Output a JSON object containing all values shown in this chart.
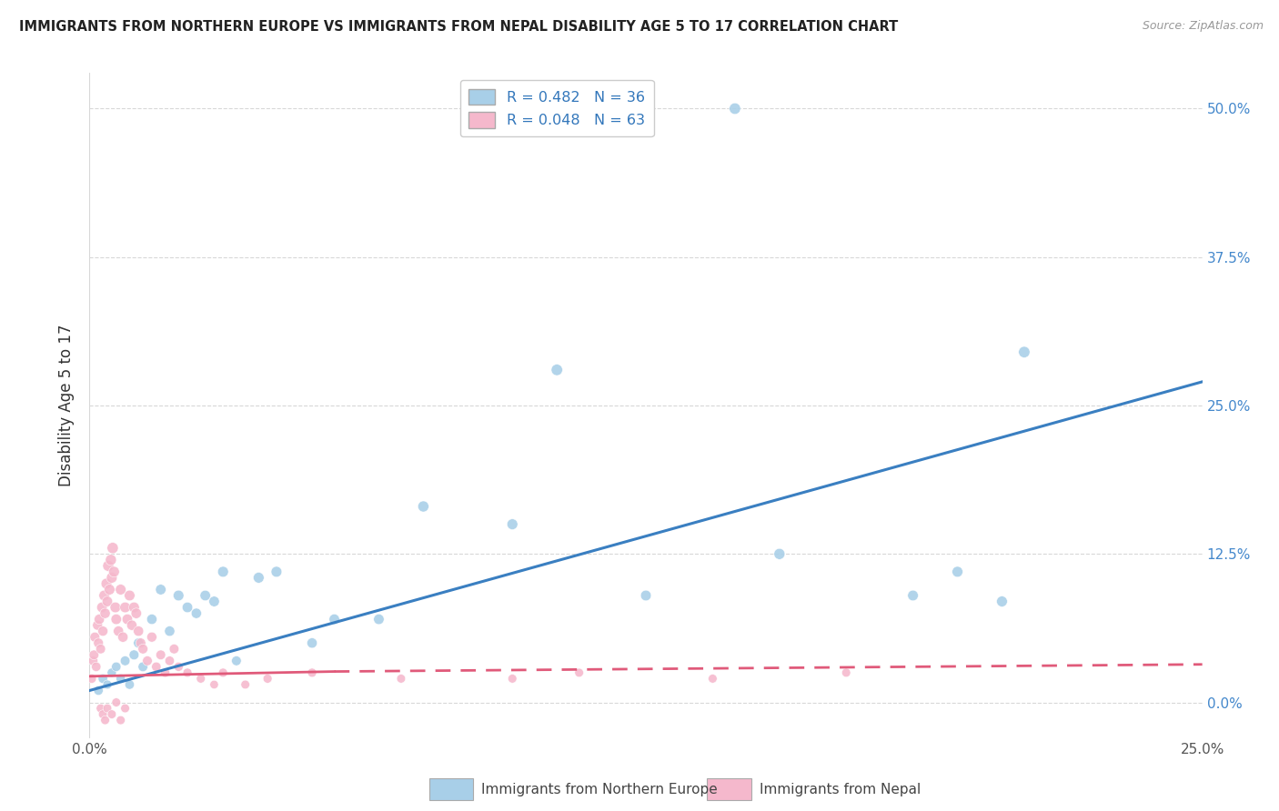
{
  "title": "IMMIGRANTS FROM NORTHERN EUROPE VS IMMIGRANTS FROM NEPAL DISABILITY AGE 5 TO 17 CORRELATION CHART",
  "source": "Source: ZipAtlas.com",
  "ylabel": "Disability Age 5 to 17",
  "legend_label_blue": "Immigrants from Northern Europe",
  "legend_label_pink": "Immigrants from Nepal",
  "legend_R_blue": "R = 0.482",
  "legend_N_blue": "N = 36",
  "legend_R_pink": "R = 0.048",
  "legend_N_pink": "N = 63",
  "ytick_values": [
    0.0,
    12.5,
    25.0,
    37.5,
    50.0
  ],
  "xlim": [
    0.0,
    25.0
  ],
  "ylim": [
    -3.0,
    53.0
  ],
  "blue_color": "#a8cfe8",
  "pink_color": "#f5b8cc",
  "blue_line_color": "#3a7fc1",
  "pink_line_color": "#e05a7a",
  "background_color": "#ffffff",
  "grid_color": "#d8d8d8",
  "blue_x": [
    0.2,
    0.3,
    0.4,
    0.5,
    0.6,
    0.7,
    0.8,
    0.9,
    1.0,
    1.1,
    1.2,
    1.4,
    1.6,
    1.8,
    2.0,
    2.2,
    2.4,
    2.6,
    2.8,
    3.0,
    3.3,
    3.8,
    4.2,
    5.0,
    5.5,
    6.5,
    7.5,
    14.5,
    19.5,
    21.0,
    10.5,
    12.5,
    20.5,
    15.5,
    18.5,
    9.5
  ],
  "blue_y": [
    1.0,
    2.0,
    1.5,
    2.5,
    3.0,
    2.0,
    3.5,
    1.5,
    4.0,
    5.0,
    3.0,
    7.0,
    9.5,
    6.0,
    9.0,
    8.0,
    7.5,
    9.0,
    8.5,
    11.0,
    3.5,
    10.5,
    11.0,
    5.0,
    7.0,
    7.0,
    16.5,
    50.0,
    11.0,
    29.5,
    28.0,
    9.0,
    8.5,
    12.5,
    9.0,
    15.0
  ],
  "blue_sizes": [
    55,
    55,
    50,
    52,
    55,
    52,
    58,
    55,
    60,
    62,
    58,
    65,
    68,
    65,
    70,
    68,
    65,
    68,
    68,
    72,
    58,
    72,
    72,
    65,
    68,
    68,
    75,
    80,
    72,
    80,
    80,
    70,
    72,
    75,
    70,
    72
  ],
  "pink_x": [
    0.05,
    0.08,
    0.1,
    0.12,
    0.15,
    0.18,
    0.2,
    0.22,
    0.25,
    0.28,
    0.3,
    0.33,
    0.35,
    0.38,
    0.4,
    0.42,
    0.45,
    0.48,
    0.5,
    0.52,
    0.55,
    0.58,
    0.6,
    0.65,
    0.7,
    0.75,
    0.8,
    0.85,
    0.9,
    0.95,
    1.0,
    1.05,
    1.1,
    1.15,
    1.2,
    1.3,
    1.4,
    1.5,
    1.6,
    1.7,
    1.8,
    1.9,
    2.0,
    2.2,
    2.5,
    2.8,
    3.0,
    3.5,
    4.0,
    5.0,
    7.0,
    9.5,
    11.0,
    14.0,
    17.0,
    0.25,
    0.3,
    0.35,
    0.4,
    0.5,
    0.6,
    0.7,
    0.8
  ],
  "pink_y": [
    2.0,
    3.5,
    4.0,
    5.5,
    3.0,
    6.5,
    5.0,
    7.0,
    4.5,
    8.0,
    6.0,
    9.0,
    7.5,
    10.0,
    8.5,
    11.5,
    9.5,
    12.0,
    10.5,
    13.0,
    11.0,
    8.0,
    7.0,
    6.0,
    9.5,
    5.5,
    8.0,
    7.0,
    9.0,
    6.5,
    8.0,
    7.5,
    6.0,
    5.0,
    4.5,
    3.5,
    5.5,
    3.0,
    4.0,
    2.5,
    3.5,
    4.5,
    3.0,
    2.5,
    2.0,
    1.5,
    2.5,
    1.5,
    2.0,
    2.5,
    2.0,
    2.0,
    2.5,
    2.0,
    2.5,
    -0.5,
    -1.0,
    -1.5,
    -0.5,
    -1.0,
    0.0,
    -1.5,
    -0.5
  ],
  "pink_sizes": [
    52,
    55,
    58,
    60,
    55,
    62,
    60,
    65,
    58,
    68,
    62,
    70,
    65,
    72,
    68,
    75,
    70,
    75,
    72,
    78,
    72,
    70,
    68,
    65,
    70,
    65,
    70,
    68,
    70,
    65,
    70,
    68,
    65,
    62,
    60,
    58,
    62,
    55,
    58,
    52,
    55,
    58,
    52,
    50,
    48,
    45,
    50,
    48,
    50,
    50,
    48,
    48,
    48,
    48,
    48,
    48,
    48,
    48,
    48,
    48,
    48,
    48,
    48
  ]
}
